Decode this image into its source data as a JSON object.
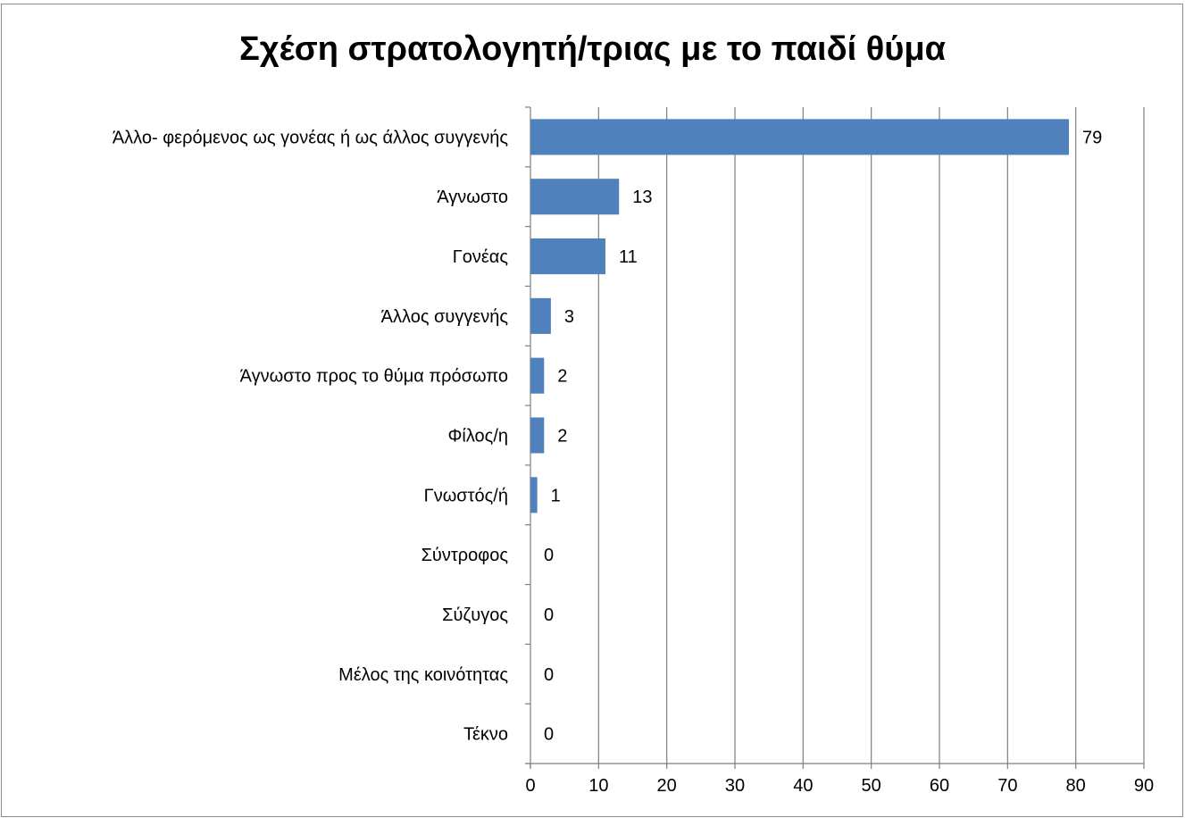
{
  "chart_data": {
    "type": "bar",
    "orientation": "horizontal",
    "title": "Σχέση στρατολογητή/τριας με το παιδί θύμα",
    "xlabel": "",
    "ylabel": "",
    "xlim": [
      0,
      90
    ],
    "x_ticks": [
      "0",
      "10",
      "20",
      "30",
      "40",
      "50",
      "60",
      "70",
      "80",
      "90"
    ],
    "x_tick_values": [
      0,
      10,
      20,
      30,
      40,
      50,
      60,
      70,
      80,
      90
    ],
    "grid": "vertical",
    "legend": "none",
    "bar_color": "#4f81bd",
    "categories": [
      "Άλλο- φερόμενος ως γονέας ή ως άλλος συγγενής",
      "Άγνωστο",
      "Γονέας",
      "Άλλος συγγενής",
      "Άγνωστο προς το θύμα πρόσωπο",
      "Φίλος/η",
      "Γνωστός/ή",
      "Σύντροφος",
      "Σύζυγος",
      "Μέλος της κοινότητας",
      "Τέκνο"
    ],
    "values": [
      79,
      13,
      11,
      3,
      2,
      2,
      1,
      0,
      0,
      0,
      0
    ],
    "data_labels": [
      "79",
      "13",
      "11",
      "3",
      "2",
      "2",
      "1",
      "0",
      "0",
      "0",
      "0"
    ]
  }
}
